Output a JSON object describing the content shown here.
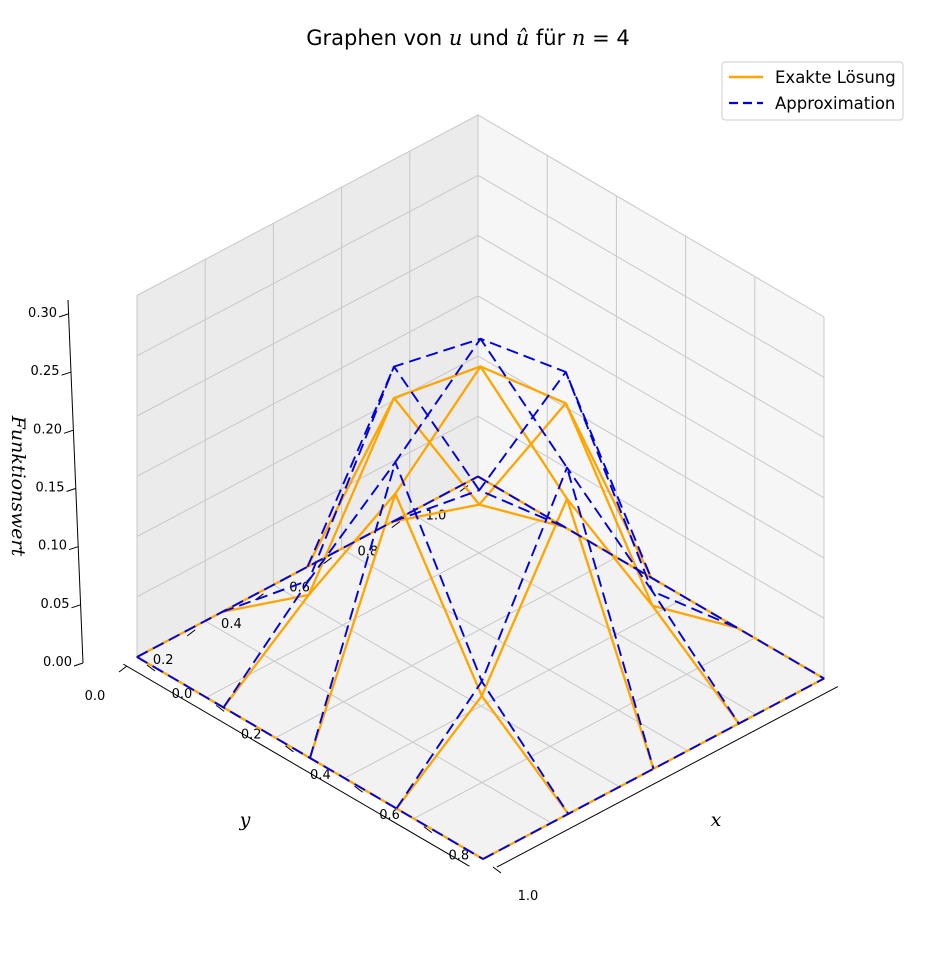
{
  "chart_data": {
    "type": "surface-3d-wireframe",
    "title": {
      "prefix": "Graphen von ",
      "var_u": "u",
      "mid": " und ",
      "var_uhat": "û",
      "mid2": " für ",
      "var_n": "n",
      "suffix": " = 4"
    },
    "xlabel": "x",
    "ylabel": "y",
    "zlabel": "Funktionswert",
    "xlim": [
      0,
      1
    ],
    "ylim": [
      0,
      1
    ],
    "zlim": [
      0,
      0.3
    ],
    "x_ticks": [
      "0.0",
      "0.2",
      "0.4",
      "0.6",
      "0.8",
      "1.0"
    ],
    "y_ticks": [
      "0.0",
      "0.2",
      "0.4",
      "0.6",
      "0.8",
      "1.0"
    ],
    "z_ticks": [
      "0.00",
      "0.05",
      "0.10",
      "0.15",
      "0.20",
      "0.25",
      "0.30"
    ],
    "grid": true,
    "legend_position": "top-right",
    "grid_x": [
      0,
      0.25,
      0.5,
      0.75,
      1
    ],
    "grid_y": [
      0,
      0.25,
      0.5,
      0.75,
      1
    ],
    "series": [
      {
        "name": "Exakte Lösung",
        "color": "#ffa500",
        "style": "solid",
        "z": [
          [
            0,
            0,
            0,
            0,
            0
          ],
          [
            0,
            0.056,
            0.182,
            0.056,
            0
          ],
          [
            0,
            0.182,
            0.25,
            0.182,
            0
          ],
          [
            0,
            0.056,
            0.182,
            0.056,
            0
          ],
          [
            0,
            0,
            0,
            0,
            0
          ]
        ]
      },
      {
        "name": "Approximation",
        "color": "#0000dd",
        "style": "dashed",
        "z": [
          [
            0,
            0,
            0,
            0,
            0
          ],
          [
            0,
            0.068,
            0.208,
            0.068,
            0
          ],
          [
            0,
            0.208,
            0.273,
            0.208,
            0
          ],
          [
            0,
            0.068,
            0.208,
            0.068,
            0
          ],
          [
            0,
            0,
            0,
            0,
            0
          ]
        ]
      }
    ]
  }
}
